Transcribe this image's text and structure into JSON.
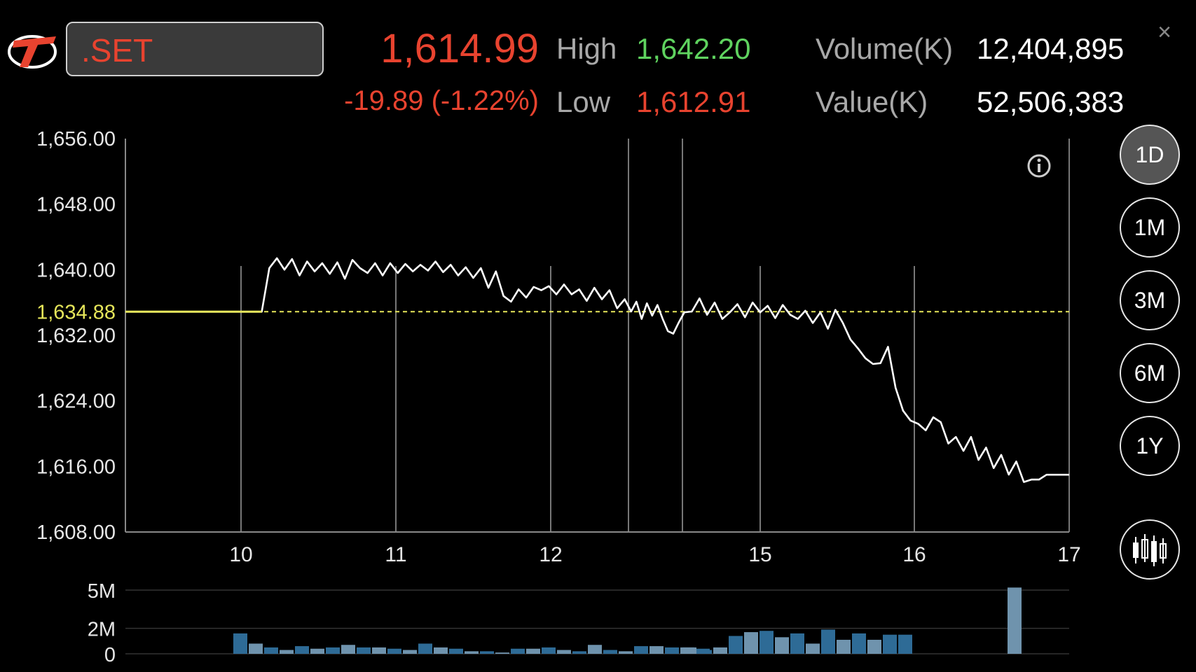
{
  "header": {
    "symbol": ".SET",
    "last_price": "1,614.99",
    "change": "-19.89 (-1.22%)",
    "high_label": "High",
    "high_value": "1,642.20",
    "low_label": "Low",
    "low_value": "1,612.91",
    "volume_label": "Volume(K)",
    "volume_value": "12,404,895",
    "value_label": "Value(K)",
    "value_value": "52,506,383",
    "close_icon": "×"
  },
  "colors": {
    "up": "#5fd35f",
    "down": "#e8432f",
    "prev_close_line": "#e6e65a",
    "volume_up": "#2e6b96",
    "volume_down": "#6f93ad"
  },
  "range_buttons": [
    {
      "label": "1D",
      "active": true
    },
    {
      "label": "1M",
      "active": false
    },
    {
      "label": "3M",
      "active": false
    },
    {
      "label": "6M",
      "active": false
    },
    {
      "label": "1Y",
      "active": false
    }
  ],
  "icons": {
    "info": "info-icon",
    "candlestick": "candlestick-icon",
    "logo": "logo-icon"
  },
  "chart_data": [
    {
      "type": "line",
      "ylim": [
        1608,
        1656
      ],
      "yticks": [
        "1,656.00",
        "1,648.00",
        "1,640.00",
        "1,632.00",
        "1,624.00",
        "1,616.00",
        "1,608.00"
      ],
      "prev_close_label": "1,634.88",
      "prev_close": 1634.88,
      "xticks": [
        "10",
        "11",
        "12",
        "15",
        "16",
        "17"
      ],
      "grid": "vertical at session boundaries",
      "x": [
        0,
        13,
        14,
        15,
        16,
        17,
        18,
        19,
        20,
        21,
        22,
        23,
        24,
        25,
        26,
        27,
        28,
        29,
        30,
        31,
        32,
        33,
        34,
        35,
        36,
        37,
        38,
        39,
        40,
        41,
        42,
        43,
        44,
        45,
        46,
        47,
        48,
        49,
        50,
        51,
        52,
        53,
        54,
        55,
        56,
        57,
        58,
        59,
        60,
        61,
        62,
        63,
        64,
        65,
        66,
        67,
        68,
        69,
        70,
        71,
        72,
        73,
        74,
        75,
        76,
        77,
        78,
        79,
        80,
        81,
        82,
        83,
        84,
        85,
        86,
        87,
        88,
        89,
        90,
        91,
        92,
        93,
        94,
        95,
        96,
        97,
        98,
        99,
        100,
        101,
        102,
        103,
        104,
        105,
        106,
        107,
        108,
        109,
        110,
        111,
        112,
        113,
        114,
        115,
        116,
        117,
        118,
        119,
        120,
        121,
        122,
        123
      ],
      "y": [
        1634.88,
        1634.88,
        1640.2,
        1641.4,
        1640.0,
        1641.3,
        1639.3,
        1641.0,
        1639.8,
        1640.8,
        1639.5,
        1640.9,
        1638.9,
        1641.2,
        1640.2,
        1639.6,
        1640.8,
        1639.3,
        1640.8,
        1639.6,
        1640.7,
        1639.8,
        1640.6,
        1639.9,
        1641.0,
        1639.7,
        1640.6,
        1639.3,
        1640.3,
        1639.0,
        1640.2,
        1637.8,
        1639.8,
        1636.8,
        1636.1,
        1637.6,
        1636.6,
        1637.9,
        1637.5,
        1638.0,
        1637.0,
        1638.2,
        1637.0,
        1637.6,
        1636.2,
        1637.8,
        1636.4,
        1637.5,
        1635.3,
        1636.4,
        1634.9,
        1636.1,
        1634.0,
        1635.9,
        1634.4,
        1635.7,
        1634.0,
        1632.5,
        1632.2,
        1633.5,
        1634.8,
        1634.9,
        1636.5,
        1634.5,
        1636.0,
        1634.0,
        1634.8,
        1635.8,
        1634.2,
        1636.0,
        1634.8,
        1635.6,
        1634.1,
        1635.7,
        1634.5,
        1634.0,
        1635.0,
        1633.5,
        1634.8,
        1632.8,
        1635.1,
        1633.5,
        1631.5,
        1630.4,
        1629.2,
        1628.5,
        1628.6,
        1630.6,
        1625.6,
        1622.8,
        1621.6,
        1621.2,
        1620.4,
        1622.0,
        1621.4,
        1618.8,
        1619.6,
        1617.9,
        1619.6,
        1616.8,
        1618.3,
        1615.8,
        1617.4,
        1615.0,
        1616.6,
        1614.1,
        1614.4,
        1614.4,
        1614.99,
        1614.99,
        1614.99,
        1614.99
      ]
    },
    {
      "type": "bar",
      "ylim": [
        0,
        5
      ],
      "yticks": [
        "5M",
        "2M",
        "0"
      ],
      "values": [
        1.6,
        0.8,
        0.5,
        0.3,
        0.6,
        0.4,
        0.5,
        0.7,
        0.5,
        0.5,
        0.4,
        0.3,
        0.8,
        0.5,
        0.4,
        0.2,
        0.2,
        0.1,
        0.4,
        0.4,
        0.5,
        0.3,
        0.2,
        0.7,
        0.3,
        0.2,
        0.6,
        0.6,
        0.5,
        0.5,
        0.4,
        0.5,
        0.3,
        0.5,
        1.4,
        1.7,
        1.8,
        1.3,
        1.6,
        0.8,
        1.9,
        1.1,
        1.6,
        1.1,
        1.5,
        1.5,
        5.2
      ],
      "colors": [
        "up",
        "down",
        "up",
        "down",
        "up",
        "down",
        "up",
        "down",
        "up",
        "down",
        "up",
        "down",
        "up",
        "down",
        "up",
        "down",
        "up",
        "down",
        "up",
        "down",
        "up",
        "down",
        "up",
        "down",
        "up",
        "down",
        "up",
        "down",
        "up",
        "down",
        "up",
        "down",
        "up",
        "down",
        "up",
        "down",
        "up",
        "down",
        "up",
        "down",
        "up",
        "down",
        "up",
        "down",
        "up",
        "up",
        "down"
      ]
    }
  ]
}
